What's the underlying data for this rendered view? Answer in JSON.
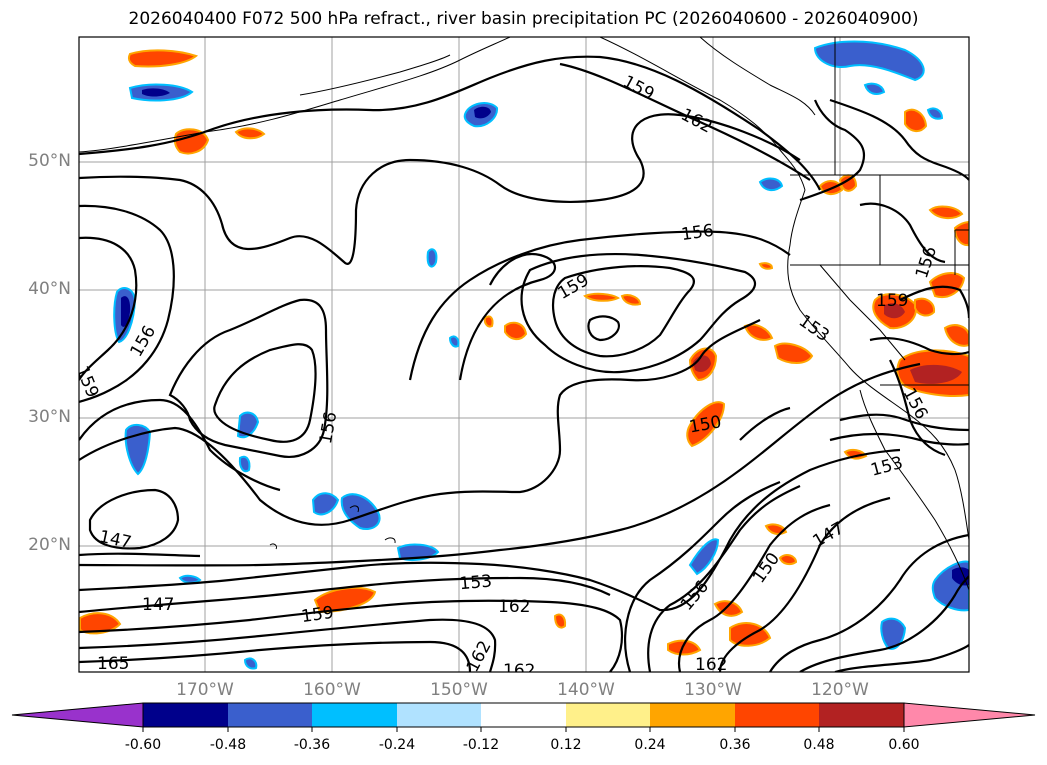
{
  "title": "2026040400 F072 500 hPa refract., river basin precipitation PC (2026040600 - 2026040900)",
  "map": {
    "lat_labels": [
      "50°N",
      "40°N",
      "30°N",
      "20°N"
    ],
    "lon_labels": [
      "170°W",
      "160°W",
      "150°W",
      "140°W",
      "130°W",
      "120°W"
    ],
    "grid_color": "#a0a0a0",
    "label_color": "#808080",
    "contour_color": "#000000",
    "contour_labels": [
      "159",
      "162",
      "156",
      "159",
      "156",
      "159",
      "156",
      "153",
      "156",
      "159",
      "156",
      "150",
      "147",
      "147",
      "153",
      "159",
      "162",
      "162",
      "156",
      "150",
      "147",
      "153",
      "162",
      "162",
      "165"
    ]
  },
  "colorbar": {
    "colors": [
      "#9932cc",
      "#00008b",
      "#3a5fcd",
      "#00bfff",
      "#b0e2ff",
      "#ffffff",
      "#fff08a",
      "#ffa500",
      "#ff4500",
      "#b22222",
      "#ff88aa"
    ],
    "ticks": [
      "-0.60",
      "-0.48",
      "-0.36",
      "-0.24",
      "-0.12",
      "0.12",
      "0.24",
      "0.36",
      "0.48",
      "0.60"
    ]
  }
}
